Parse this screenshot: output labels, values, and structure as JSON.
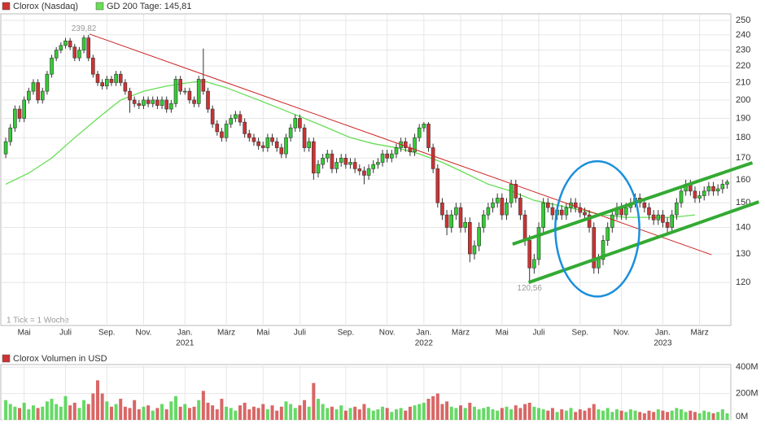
{
  "chart_data": {
    "type": "candlestick",
    "title": "Clorox (Nasdaq)",
    "note": "1 Tick = 1 Woche",
    "up_color": "#33cc33",
    "down_color": "#cc3333",
    "ohlc": [
      [
        172,
        180,
        170,
        178
      ],
      [
        178,
        187,
        176,
        185
      ],
      [
        185,
        197,
        183,
        195
      ],
      [
        195,
        197,
        188,
        190
      ],
      [
        190,
        202,
        188,
        200
      ],
      [
        200,
        207,
        198,
        205
      ],
      [
        205,
        212,
        203,
        210
      ],
      [
        210,
        212,
        198,
        200
      ],
      [
        200,
        207,
        198,
        205
      ],
      [
        205,
        217,
        203,
        215
      ],
      [
        215,
        227,
        213,
        225
      ],
      [
        225,
        232,
        223,
        230
      ],
      [
        230,
        235,
        228,
        233
      ],
      [
        233,
        238,
        231,
        236
      ],
      [
        236,
        238,
        230,
        232
      ],
      [
        232,
        234,
        223,
        225
      ],
      [
        225,
        232,
        223,
        230
      ],
      [
        230,
        239.82,
        228,
        238
      ],
      [
        238,
        240,
        223,
        225
      ],
      [
        225,
        227,
        213,
        215
      ],
      [
        215,
        217,
        208,
        210
      ],
      [
        210,
        212,
        206,
        208
      ],
      [
        208,
        214,
        206,
        212
      ],
      [
        212,
        214,
        208,
        210
      ],
      [
        210,
        217,
        208,
        215
      ],
      [
        215,
        217,
        208,
        210
      ],
      [
        210,
        212,
        203,
        205
      ],
      [
        205,
        207,
        193,
        200
      ],
      [
        200,
        202,
        196,
        198
      ],
      [
        198,
        200,
        195,
        197
      ],
      [
        197,
        202,
        195,
        200
      ],
      [
        200,
        202,
        196,
        198
      ],
      [
        198,
        202,
        196,
        200
      ],
      [
        200,
        202,
        195,
        197
      ],
      [
        197,
        202,
        195,
        200
      ],
      [
        200,
        202,
        193,
        195
      ],
      [
        195,
        200,
        193,
        198
      ],
      [
        198,
        214,
        196,
        212
      ],
      [
        212,
        214,
        203,
        205
      ],
      [
        205,
        207,
        203,
        205
      ],
      [
        205,
        207,
        198,
        200
      ],
      [
        200,
        202,
        196,
        198
      ],
      [
        198,
        214,
        196,
        212
      ],
      [
        212,
        231,
        203,
        205
      ],
      [
        205,
        207,
        193,
        195
      ],
      [
        195,
        197,
        185,
        187
      ],
      [
        187,
        189,
        181,
        183
      ],
      [
        183,
        185,
        178,
        180
      ],
      [
        180,
        189,
        178,
        187
      ],
      [
        187,
        192,
        185,
        190
      ],
      [
        190,
        194,
        188,
        192
      ],
      [
        192,
        194,
        186,
        188
      ],
      [
        188,
        190,
        180,
        182
      ],
      [
        182,
        184,
        178,
        180
      ],
      [
        180,
        182,
        176,
        178
      ],
      [
        178,
        180,
        174,
        176
      ],
      [
        176,
        178,
        173,
        175
      ],
      [
        175,
        182,
        173,
        180
      ],
      [
        180,
        182,
        176,
        178
      ],
      [
        178,
        180,
        173,
        175
      ],
      [
        175,
        177,
        170,
        172
      ],
      [
        172,
        182,
        170,
        180
      ],
      [
        180,
        187,
        178,
        185
      ],
      [
        185,
        192,
        183,
        190
      ],
      [
        190,
        192,
        183,
        185
      ],
      [
        185,
        187,
        173,
        175
      ],
      [
        175,
        180,
        173,
        178
      ],
      [
        178,
        180,
        160,
        163
      ],
      [
        163,
        169,
        161,
        167
      ],
      [
        167,
        172,
        165,
        170
      ],
      [
        170,
        174,
        168,
        172
      ],
      [
        172,
        174,
        163,
        165
      ],
      [
        165,
        170,
        163,
        168
      ],
      [
        168,
        172,
        166,
        170
      ],
      [
        170,
        172,
        165,
        167
      ],
      [
        167,
        170,
        165,
        168
      ],
      [
        168,
        170,
        163,
        165
      ],
      [
        165,
        167,
        162,
        164
      ],
      [
        164,
        166,
        158,
        162
      ],
      [
        162,
        167,
        160,
        165
      ],
      [
        165,
        169,
        163,
        167
      ],
      [
        167,
        170,
        165,
        168
      ],
      [
        168,
        174,
        166,
        172
      ],
      [
        172,
        174,
        168,
        170
      ],
      [
        170,
        174,
        168,
        172
      ],
      [
        172,
        177,
        170,
        175
      ],
      [
        175,
        180,
        173,
        178
      ],
      [
        178,
        180,
        173,
        175
      ],
      [
        175,
        177,
        171,
        173
      ],
      [
        173,
        182,
        171,
        180
      ],
      [
        180,
        187,
        178,
        185
      ],
      [
        185,
        188,
        183,
        187
      ],
      [
        187,
        188,
        173,
        175
      ],
      [
        175,
        177,
        163,
        165
      ],
      [
        165,
        167,
        148,
        150
      ],
      [
        150,
        152,
        143,
        145
      ],
      [
        145,
        147,
        137,
        140
      ],
      [
        140,
        147,
        138,
        145
      ],
      [
        145,
        150,
        143,
        148
      ],
      [
        148,
        150,
        138,
        140
      ],
      [
        140,
        144,
        138,
        142
      ],
      [
        142,
        144,
        127,
        130
      ],
      [
        130,
        135,
        128,
        133
      ],
      [
        133,
        142,
        131,
        140
      ],
      [
        140,
        147,
        138,
        145
      ],
      [
        145,
        150,
        143,
        148
      ],
      [
        148,
        152,
        146,
        150
      ],
      [
        150,
        154,
        148,
        152
      ],
      [
        152,
        154,
        143,
        145
      ],
      [
        145,
        152,
        143,
        150
      ],
      [
        150,
        160,
        148,
        158
      ],
      [
        158,
        160,
        150,
        152
      ],
      [
        152,
        154,
        143,
        145
      ],
      [
        145,
        147,
        133,
        135
      ],
      [
        135,
        137,
        120.56,
        125
      ],
      [
        125,
        130,
        123,
        128
      ],
      [
        128,
        142,
        126,
        140
      ],
      [
        140,
        152,
        138,
        150
      ],
      [
        150,
        152,
        146,
        148
      ],
      [
        148,
        150,
        143,
        145
      ],
      [
        145,
        149,
        143,
        147
      ],
      [
        147,
        149,
        143,
        145
      ],
      [
        145,
        150,
        143,
        148
      ],
      [
        148,
        152,
        146,
        150
      ],
      [
        150,
        152,
        146,
        148
      ],
      [
        148,
        150,
        144,
        146
      ],
      [
        146,
        148,
        143,
        145
      ],
      [
        145,
        147,
        138,
        140
      ],
      [
        140,
        142,
        123,
        125
      ],
      [
        125,
        130,
        123,
        128
      ],
      [
        128,
        137,
        126,
        135
      ],
      [
        135,
        142,
        133,
        140
      ],
      [
        140,
        147,
        138,
        145
      ],
      [
        145,
        150,
        143,
        148
      ],
      [
        148,
        150,
        143,
        145
      ],
      [
        145,
        150,
        143,
        148
      ],
      [
        148,
        152,
        146,
        150
      ],
      [
        150,
        154,
        148,
        152
      ],
      [
        152,
        154,
        148,
        150
      ],
      [
        150,
        152,
        146,
        148
      ],
      [
        148,
        150,
        143,
        145
      ],
      [
        145,
        147,
        141,
        143
      ],
      [
        143,
        147,
        141,
        145
      ],
      [
        145,
        147,
        140,
        142
      ],
      [
        142,
        144,
        138,
        140
      ],
      [
        140,
        147,
        138,
        145
      ],
      [
        145,
        152,
        143,
        150
      ],
      [
        150,
        157,
        148,
        155
      ],
      [
        155,
        160,
        153,
        158
      ],
      [
        158,
        160,
        153,
        155
      ],
      [
        155,
        157,
        150,
        152
      ],
      [
        152,
        155,
        150,
        153
      ],
      [
        153,
        157,
        151,
        155
      ],
      [
        155,
        159,
        153,
        157
      ],
      [
        157,
        159,
        153,
        155
      ],
      [
        155,
        158,
        153,
        156
      ],
      [
        156,
        160,
        154,
        158
      ],
      [
        158,
        160,
        156,
        159
      ]
    ],
    "xlim": [
      -0.9,
      157.8
    ],
    "xticks": [
      {
        "value": 4,
        "label": "Mai"
      },
      {
        "value": 13,
        "label": "Juli"
      },
      {
        "value": 22,
        "label": "Sep."
      },
      {
        "value": 30,
        "label": "Nov."
      },
      {
        "value": 39,
        "label": "Jan."
      },
      {
        "value": 48,
        "label": "März"
      },
      {
        "value": 56,
        "label": "Mai"
      },
      {
        "value": 64,
        "label": "Juli"
      },
      {
        "value": 74,
        "label": "Sep."
      },
      {
        "value": 83,
        "label": "Nov."
      },
      {
        "value": 91,
        "label": "Jan."
      },
      {
        "value": 99,
        "label": "März"
      },
      {
        "value": 108,
        "label": "Mai"
      },
      {
        "value": 116,
        "label": "Juli"
      },
      {
        "value": 125,
        "label": "Sep."
      },
      {
        "value": 134,
        "label": "Nov."
      },
      {
        "value": 143,
        "label": "Jan."
      },
      {
        "value": 151,
        "label": "März"
      }
    ],
    "year_ticks": [
      {
        "value": 39,
        "label": "2021"
      },
      {
        "value": 91,
        "label": "2022"
      },
      {
        "value": 143,
        "label": "2023"
      }
    ],
    "ylim": [
      106.4,
      254
    ],
    "log_scale": true,
    "yticks": [
      120,
      130,
      140,
      150,
      160,
      170,
      180,
      190,
      200,
      210,
      220,
      230,
      240,
      250
    ],
    "grid": true,
    "series": [
      {
        "name": "GD 200 Tage: 145,81",
        "color": "#66dd55",
        "x": [
          0,
          5,
          10,
          15,
          20,
          25,
          30,
          35,
          40,
          43,
          48,
          55,
          60,
          65,
          70,
          75,
          80,
          85,
          90,
          95,
          100,
          105,
          110,
          115,
          120,
          125,
          130,
          135,
          140,
          145,
          150
        ],
        "values": [
          158,
          163,
          170,
          180,
          190,
          200,
          205,
          208,
          210,
          211,
          207,
          200,
          195,
          190,
          185,
          180,
          177,
          175,
          172,
          168,
          163,
          158,
          155,
          151,
          149,
          147,
          145,
          144,
          144,
          144,
          145
        ]
      }
    ],
    "trendlines": [
      {
        "color": "#cc2222",
        "x": [
          18.2,
          153.6
        ],
        "y": [
          240.6,
          129.7
        ]
      },
      {
        "color": "#33aa33",
        "x": [
          110.3,
          162.5
        ],
        "y": [
          133.6,
          167.8
        ]
      },
      {
        "color": "#33aa33",
        "x": [
          113.8,
          163.9
        ],
        "y": [
          120,
          150.4
        ]
      }
    ],
    "ellipse": {
      "color": "#1a8fdd",
      "x": [
        119.6,
        137.9
      ],
      "y": [
        115.4,
        168.5
      ]
    },
    "extreme_labels": [
      {
        "x": 17,
        "y": 239.82,
        "label": "239,82"
      },
      {
        "x": 114,
        "y": 120.56,
        "label": "120,56"
      }
    ],
    "volume": {
      "title": "Clorox Volumen in USD",
      "ylim": [
        0,
        420000000.0
      ],
      "yticks": [
        {
          "value": 0,
          "label": "0M"
        },
        {
          "value": 200000000.0,
          "label": "200M"
        },
        {
          "value": 400000000.0,
          "label": "400M"
        }
      ],
      "values": [
        150000000.0,
        120000000.0,
        100000000.0,
        90000000.0,
        130000000.0,
        80000000.0,
        110000000.0,
        90000000.0,
        100000000.0,
        140000000.0,
        160000000.0,
        120000000.0,
        100000000.0,
        180000000.0,
        110000000.0,
        130000000.0,
        90000000.0,
        150000000.0,
        120000000.0,
        200000000.0,
        300000000.0,
        200000000.0,
        140000000.0,
        100000000.0,
        120000000.0,
        160000000.0,
        100000000.0,
        90000000.0,
        150000000.0,
        80000000.0,
        100000000.0,
        110000000.0,
        70000000.0,
        90000000.0,
        120000000.0,
        80000000.0,
        140000000.0,
        180000000.0,
        100000000.0,
        120000000.0,
        90000000.0,
        100000000.0,
        150000000.0,
        220000000.0,
        130000000.0,
        110000000.0,
        80000000.0,
        160000000.0,
        100000000.0,
        90000000.0,
        70000000.0,
        110000000.0,
        130000000.0,
        80000000.0,
        100000000.0,
        90000000.0,
        120000000.0,
        80000000.0,
        110000000.0,
        70000000.0,
        100000000.0,
        140000000.0,
        120000000.0,
        90000000.0,
        110000000.0,
        150000000.0,
        100000000.0,
        280000000.0,
        160000000.0,
        120000000.0,
        90000000.0,
        100000000.0,
        80000000.0,
        110000000.0,
        70000000.0,
        90000000.0,
        100000000.0,
        80000000.0,
        120000000.0,
        90000000.0,
        70000000.0,
        80000000.0,
        100000000.0,
        90000000.0,
        60000000.0,
        80000000.0,
        90000000.0,
        70000000.0,
        100000000.0,
        110000000.0,
        120000000.0,
        130000000.0,
        160000000.0,
        180000000.0,
        200000000.0,
        120000000.0,
        140000000.0,
        100000000.0,
        90000000.0,
        110000000.0,
        90000000.0,
        130000000.0,
        100000000.0,
        80000000.0,
        90000000.0,
        100000000.0,
        80000000.0,
        70000000.0,
        90000000.0,
        100000000.0,
        80000000.0,
        110000000.0,
        90000000.0,
        120000000.0,
        130000000.0,
        100000000.0,
        90000000.0,
        80000000.0,
        70000000.0,
        90000000.0,
        60000000.0,
        80000000.0,
        70000000.0,
        90000000.0,
        60000000.0,
        80000000.0,
        70000000.0,
        90000000.0,
        120000000.0,
        80000000.0,
        70000000.0,
        90000000.0,
        60000000.0,
        80000000.0,
        70000000.0,
        60000000.0,
        80000000.0,
        70000000.0,
        60000000.0,
        50000000.0,
        70000000.0,
        60000000.0,
        80000000.0,
        70000000.0,
        60000000.0,
        70000000.0,
        90000000.0,
        80000000.0,
        60000000.0,
        70000000.0,
        60000000.0,
        50000000.0,
        70000000.0,
        60000000.0,
        50000000.0,
        60000000.0,
        80000000.0,
        50000000.0
      ]
    }
  }
}
